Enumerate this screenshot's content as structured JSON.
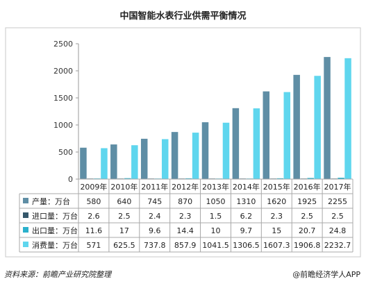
{
  "chart_data": {
    "type": "bar",
    "title": "中国智能水表行业供需平衡情况",
    "categories": [
      "2009年",
      "2010年",
      "2011年",
      "2012年",
      "2013年",
      "2014年",
      "2015年",
      "2016年",
      "2017年"
    ],
    "ylim": [
      0,
      2500
    ],
    "yticks": [
      0,
      500,
      1000,
      1500,
      2000,
      2500
    ],
    "grid": false,
    "legend": "table-below",
    "series": [
      {
        "name": "产量：万台",
        "color": "#5f8ea5",
        "values": [
          580,
          640,
          745,
          870,
          1050,
          1310,
          1620,
          1925,
          2255
        ],
        "labels": [
          "580",
          "640",
          "745",
          "870",
          "1050",
          "1310",
          "1620",
          "1925",
          "2255"
        ]
      },
      {
        "name": "进口量：万台",
        "color": "#35576a",
        "values": [
          2.6,
          2.5,
          2.4,
          2.3,
          1.5,
          6.2,
          2.3,
          2.5,
          2.5
        ],
        "labels": [
          "2.6",
          "2.5",
          "2.4",
          "2.3",
          "1.5",
          "6.2",
          "2.3",
          "2.5",
          "2.5"
        ]
      },
      {
        "name": "出口量：万台",
        "color": "#2bb1cc",
        "values": [
          11.6,
          17,
          9.6,
          14.4,
          10,
          9.7,
          15,
          20.7,
          24.8
        ],
        "labels": [
          "11.6",
          "17",
          "9.6",
          "14.4",
          "10",
          "9.7",
          "15",
          "20.7",
          "24.8"
        ]
      },
      {
        "name": "消费量：万台",
        "color": "#5fd6ee",
        "values": [
          571,
          625.5,
          737.8,
          857.9,
          1041.5,
          1306.5,
          1607.3,
          1906.8,
          2232.7
        ],
        "labels": [
          "571",
          "625.5",
          "737.8",
          "857.9",
          "1041.5",
          "1306.5",
          "1607.3",
          "1906.8",
          "2232.7"
        ]
      }
    ]
  },
  "footer": {
    "source": "资料来源：前瞻产业研究院整理",
    "brand": "@前瞻经济学人APP"
  }
}
